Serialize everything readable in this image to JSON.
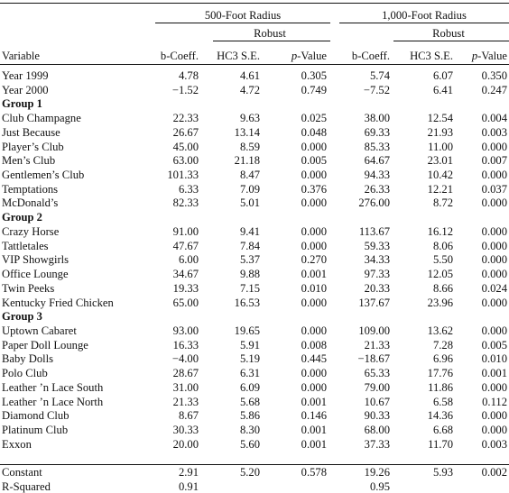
{
  "header": {
    "group500": "500-Foot Radius",
    "group1000": "1,000-Foot Radius",
    "robust": "Robust",
    "variable": "Variable",
    "bcoeff": "b-Coeff.",
    "hc3se": "HC3 S.E.",
    "p_italic": "p",
    "p_rest": "-Value"
  },
  "rows": [
    {
      "type": "data",
      "label": "Year 1999",
      "v": [
        "4.78",
        "4.61",
        "0.305",
        "5.74",
        "6.07",
        "0.350"
      ]
    },
    {
      "type": "data",
      "label": "Year 2000",
      "v": [
        "−1.52",
        "4.72",
        "0.749",
        "−7.52",
        "6.41",
        "0.247"
      ]
    },
    {
      "type": "group",
      "label": "Group 1"
    },
    {
      "type": "data",
      "label": "Club Champagne",
      "v": [
        "22.33",
        "9.63",
        "0.025",
        "38.00",
        "12.54",
        "0.004"
      ]
    },
    {
      "type": "data",
      "label": "Just Because",
      "v": [
        "26.67",
        "13.14",
        "0.048",
        "69.33",
        "21.93",
        "0.003"
      ]
    },
    {
      "type": "data",
      "label": "Player’s Club",
      "v": [
        "45.00",
        "8.59",
        "0.000",
        "85.33",
        "11.00",
        "0.000"
      ]
    },
    {
      "type": "data",
      "label": "Men’s Club",
      "v": [
        "63.00",
        "21.18",
        "0.005",
        "64.67",
        "23.01",
        "0.007"
      ]
    },
    {
      "type": "data",
      "label": "Gentlemen’s Club",
      "v": [
        "101.33",
        "8.47",
        "0.000",
        "94.33",
        "10.42",
        "0.000"
      ]
    },
    {
      "type": "data",
      "label": "Temptations",
      "v": [
        "6.33",
        "7.09",
        "0.376",
        "26.33",
        "12.21",
        "0.037"
      ]
    },
    {
      "type": "data",
      "label": "McDonald’s",
      "v": [
        "82.33",
        "5.01",
        "0.000",
        "276.00",
        "8.72",
        "0.000"
      ]
    },
    {
      "type": "group",
      "label": "Group 2"
    },
    {
      "type": "data",
      "label": "Crazy Horse",
      "v": [
        "91.00",
        "9.41",
        "0.000",
        "113.67",
        "16.12",
        "0.000"
      ]
    },
    {
      "type": "data",
      "label": "Tattletales",
      "v": [
        "47.67",
        "7.84",
        "0.000",
        "59.33",
        "8.06",
        "0.000"
      ]
    },
    {
      "type": "data",
      "label": "VIP Showgirls",
      "v": [
        "6.00",
        "5.37",
        "0.270",
        "34.33",
        "5.50",
        "0.000"
      ]
    },
    {
      "type": "data",
      "label": "Office Lounge",
      "v": [
        "34.67",
        "9.88",
        "0.001",
        "97.33",
        "12.05",
        "0.000"
      ]
    },
    {
      "type": "data",
      "label": "Twin Peeks",
      "v": [
        "19.33",
        "7.15",
        "0.010",
        "20.33",
        "8.66",
        "0.024"
      ]
    },
    {
      "type": "data",
      "label": "Kentucky Fried Chicken",
      "v": [
        "65.00",
        "16.53",
        "0.000",
        "137.67",
        "23.96",
        "0.000"
      ]
    },
    {
      "type": "group",
      "label": "Group 3"
    },
    {
      "type": "data",
      "label": "Uptown Cabaret",
      "v": [
        "93.00",
        "19.65",
        "0.000",
        "109.00",
        "13.62",
        "0.000"
      ]
    },
    {
      "type": "data",
      "label": "Paper Doll Lounge",
      "v": [
        "16.33",
        "5.91",
        "0.008",
        "21.33",
        "7.28",
        "0.005"
      ]
    },
    {
      "type": "data",
      "label": "Baby Dolls",
      "v": [
        "−4.00",
        "5.19",
        "0.445",
        "−18.67",
        "6.96",
        "0.010"
      ]
    },
    {
      "type": "data",
      "label": "Polo Club",
      "v": [
        "28.67",
        "6.31",
        "0.000",
        "65.33",
        "17.76",
        "0.001"
      ]
    },
    {
      "type": "data",
      "label": "Leather ’n Lace South",
      "v": [
        "31.00",
        "6.09",
        "0.000",
        "79.00",
        "11.86",
        "0.000"
      ]
    },
    {
      "type": "data",
      "label": "Leather ’n Lace North",
      "v": [
        "21.33",
        "5.68",
        "0.001",
        "10.67",
        "6.58",
        "0.112"
      ]
    },
    {
      "type": "data",
      "label": "Diamond Club",
      "v": [
        "8.67",
        "5.86",
        "0.146",
        "90.33",
        "14.36",
        "0.000"
      ]
    },
    {
      "type": "data",
      "label": "Platinum Club",
      "v": [
        "30.33",
        "8.30",
        "0.001",
        "68.00",
        "6.68",
        "0.000"
      ]
    },
    {
      "type": "data",
      "label": "Exxon",
      "v": [
        "20.00",
        "5.60",
        "0.001",
        "37.33",
        "11.70",
        "0.003"
      ]
    },
    {
      "type": "spacer"
    },
    {
      "type": "data",
      "label": "Constant",
      "v": [
        "2.91",
        "5.20",
        "0.578",
        "19.26",
        "5.93",
        "0.002"
      ]
    },
    {
      "type": "data",
      "label": "R-Squared",
      "v": [
        "0.91",
        "",
        "",
        "0.95",
        "",
        ""
      ]
    }
  ]
}
